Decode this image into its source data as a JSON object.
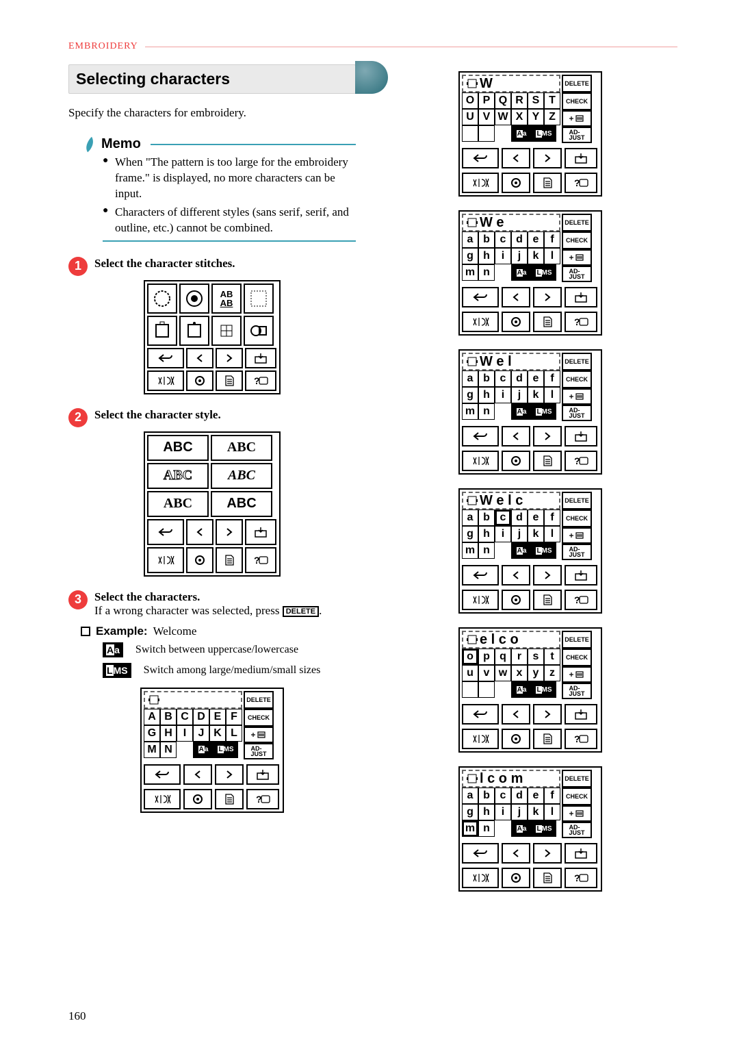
{
  "breadcrumb": "EMBROIDERY",
  "title": "Selecting characters",
  "intro": "Specify the characters for embroidery.",
  "memo": {
    "label": "Memo",
    "items": [
      "When \"The pattern is too large for the embroidery frame.\" is displayed, no more characters can be input.",
      "Characters of different styles (sans serif, serif, and outline, etc.) cannot be combined."
    ]
  },
  "steps": {
    "s1": "Select the character stitches.",
    "s2": "Select the character style.",
    "s3_a": "Select the characters.",
    "s3_b": "If a wrong character was selected, press ",
    "delete_chip": "DELETE",
    "example_label": "Example:",
    "example_value": "Welcome",
    "legend1": "Switch between uppercase/lowercase",
    "legend2": "Switch among large/medium/small sizes"
  },
  "style_panel": {
    "r1c1": "ABC",
    "r1c2": "ABC",
    "r2c1": "ABC",
    "r2c2": "ABC",
    "r3c1": "ABC",
    "r3c2": "ABC"
  },
  "char_panels": {
    "btn_delete": "DELETE",
    "btn_check": "CHECK",
    "btn_case": "Aa",
    "btn_size": "LMS",
    "btn_adjust": "AD-\nJUST",
    "upper_rows": [
      [
        "A",
        "B",
        "C",
        "D",
        "E",
        "F"
      ],
      [
        "G",
        "H",
        "I",
        "J",
        "K",
        "L"
      ],
      [
        "M",
        "N",
        "",
        "",
        "",
        ""
      ]
    ],
    "upper_rows_op": [
      [
        "O",
        "P",
        "Q",
        "R",
        "S",
        "T"
      ],
      [
        "U",
        "V",
        "W",
        "X",
        "Y",
        "Z"
      ],
      [
        "",
        "",
        "",
        "",
        "",
        ""
      ]
    ],
    "lower_rows": [
      [
        "a",
        "b",
        "c",
        "d",
        "e",
        "f"
      ],
      [
        "g",
        "h",
        "i",
        "j",
        "k",
        "l"
      ],
      [
        "m",
        "n",
        "",
        "",
        "",
        ""
      ]
    ],
    "lower_rows_op": [
      [
        "o",
        "p",
        "q",
        "r",
        "s",
        "t"
      ],
      [
        "u",
        "v",
        "w",
        "x",
        "y",
        "z"
      ],
      [
        "",
        "",
        "",
        "",
        "",
        ""
      ]
    ],
    "seq": [
      {
        "head": "",
        "mode": "upper_ab"
      },
      {
        "head": "W",
        "mode": "upper_op"
      },
      {
        "head": "W e",
        "mode": "lower_ab"
      },
      {
        "head": "W e l",
        "mode": "lower_ab"
      },
      {
        "head": "W e l c",
        "mode": "lower_ab",
        "hl": "c"
      },
      {
        "head": " e l c o",
        "mode": "lower_op",
        "hl": "o"
      },
      {
        "head": " l c o m",
        "mode": "lower_ab",
        "hl": "m"
      }
    ]
  },
  "colors": {
    "accent": "#ee3c3c",
    "teal": "#3aa0b4"
  },
  "page_number": "160"
}
